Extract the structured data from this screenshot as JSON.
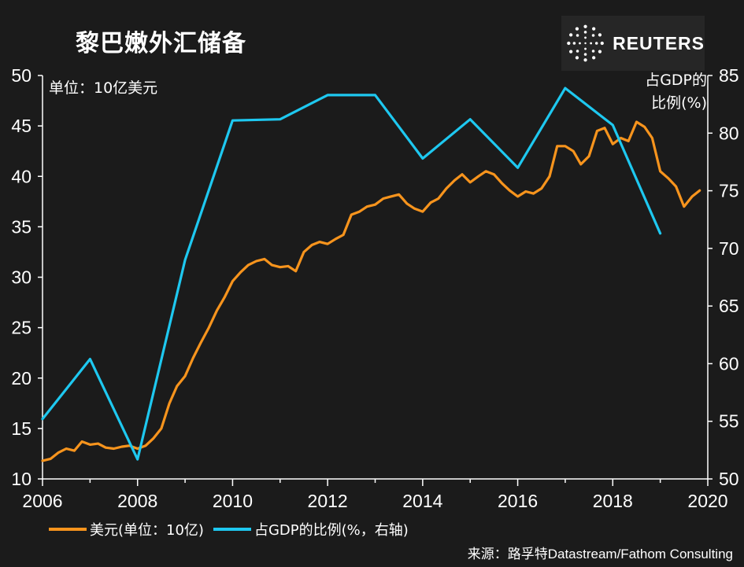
{
  "header": {
    "title": "黎巴嫩外汇储备",
    "brand": "REUTERS"
  },
  "colors": {
    "background": "#1b1b1b",
    "reserves": "#f7941d",
    "gdp_ratio": "#1ec8f0",
    "axis": "#ffffff"
  },
  "icons": {
    "logo": "reuters-dot-circle-logo"
  },
  "chart_data": {
    "type": "line",
    "left_axis_label": "单位：10亿美元",
    "right_axis_label": [
      "占GDP的",
      "比例(%)"
    ],
    "source": "来源：路孚特Datastream/Fathom Consulting",
    "x_ticks": [
      "2006",
      "2008",
      "2010",
      "2012",
      "2014",
      "2016",
      "2018",
      "2020"
    ],
    "y_left_ticks": [
      "10",
      "15",
      "20",
      "25",
      "30",
      "35",
      "40",
      "45",
      "50"
    ],
    "y_right_ticks": [
      "50",
      "55",
      "60",
      "65",
      "70",
      "75",
      "80",
      "85"
    ],
    "xlim": [
      2006,
      2020
    ],
    "ylim_left": [
      10,
      50
    ],
    "ylim_right": [
      50,
      85
    ],
    "grid": false,
    "legend_position": "bottom",
    "series": [
      {
        "name": "美元(单位：10亿)",
        "axis": "left",
        "x": [
          2006.0,
          2006.17,
          2006.33,
          2006.5,
          2006.67,
          2006.83,
          2007.0,
          2007.17,
          2007.33,
          2007.5,
          2007.67,
          2007.83,
          2008.0,
          2008.17,
          2008.33,
          2008.5,
          2008.67,
          2008.83,
          2009.0,
          2009.17,
          2009.33,
          2009.5,
          2009.67,
          2009.83,
          2010.0,
          2010.17,
          2010.33,
          2010.5,
          2010.67,
          2010.83,
          2011.0,
          2011.17,
          2011.33,
          2011.5,
          2011.67,
          2011.83,
          2012.0,
          2012.17,
          2012.33,
          2012.5,
          2012.67,
          2012.83,
          2013.0,
          2013.17,
          2013.33,
          2013.5,
          2013.67,
          2013.83,
          2014.0,
          2014.17,
          2014.33,
          2014.5,
          2014.67,
          2014.83,
          2015.0,
          2015.17,
          2015.33,
          2015.5,
          2015.67,
          2015.83,
          2016.0,
          2016.17,
          2016.33,
          2016.5,
          2016.67,
          2016.83,
          2017.0,
          2017.17,
          2017.33,
          2017.5,
          2017.67,
          2017.83,
          2018.0,
          2018.17,
          2018.33,
          2018.5,
          2018.67,
          2018.83,
          2019.0,
          2019.17,
          2019.33,
          2019.5,
          2019.67,
          2019.83
        ],
        "values": [
          11.8,
          12.0,
          12.6,
          13.0,
          12.8,
          13.7,
          13.4,
          13.5,
          13.1,
          13.0,
          13.2,
          13.3,
          13.0,
          13.3,
          14.0,
          15.0,
          17.5,
          19.2,
          20.2,
          22.0,
          23.5,
          25.0,
          26.7,
          28.0,
          29.6,
          30.5,
          31.2,
          31.6,
          31.8,
          31.2,
          31.0,
          31.1,
          30.6,
          32.5,
          33.2,
          33.5,
          33.3,
          33.8,
          34.2,
          36.2,
          36.5,
          37.0,
          37.2,
          37.8,
          38.0,
          38.2,
          37.3,
          36.8,
          36.5,
          37.4,
          37.8,
          38.8,
          39.6,
          40.2,
          39.4,
          40.0,
          40.5,
          40.2,
          39.3,
          38.6,
          38.0,
          38.5,
          38.3,
          38.8,
          40.0,
          43.0,
          43.0,
          42.5,
          41.2,
          42.0,
          44.5,
          44.8,
          43.2,
          43.8,
          43.5,
          45.4,
          44.9,
          43.8,
          40.5,
          39.8,
          39.0,
          37.0,
          38.0,
          38.6
        ]
      },
      {
        "name": "占GDP的比例(%，右轴)",
        "axis": "right",
        "x": [
          2006,
          2007,
          2008,
          2009,
          2010,
          2011,
          2012,
          2013,
          2014,
          2015,
          2016,
          2017,
          2018,
          2019
        ],
        "values": [
          55.2,
          60.4,
          51.7,
          69.0,
          81.1,
          81.2,
          83.3,
          83.3,
          77.8,
          81.2,
          77.0,
          83.9,
          80.7,
          71.3
        ]
      }
    ]
  }
}
